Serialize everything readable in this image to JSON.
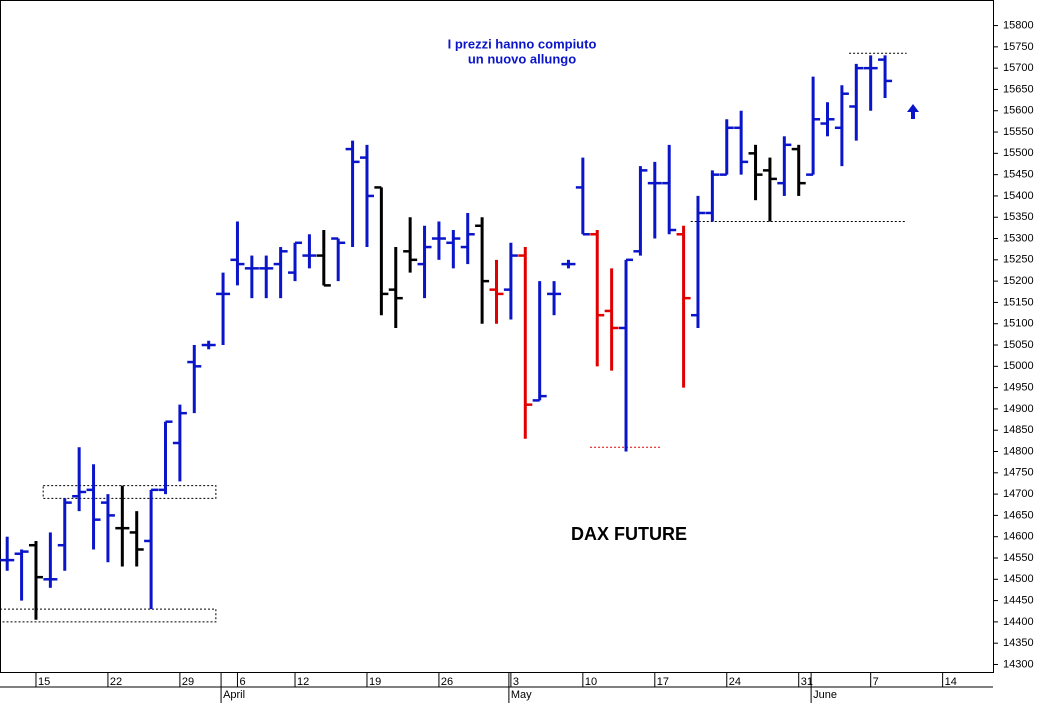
{
  "chart_data": {
    "type": "ohlc",
    "title": "DAX FUTURE",
    "annotations": [
      "I prezzi hanno compiuto",
      "un nuovo allungo"
    ],
    "categories": [
      null,
      null,
      "15",
      null,
      null,
      null,
      null,
      "22",
      null,
      null,
      null,
      null,
      "29",
      null,
      null,
      null,
      "6",
      null,
      null,
      null,
      "12",
      null,
      null,
      null,
      null,
      "19",
      null,
      null,
      null,
      null,
      "26",
      null,
      null,
      null,
      null,
      "3",
      null,
      null,
      null,
      null,
      "10",
      null,
      null,
      null,
      null,
      "17",
      null,
      null,
      null,
      null,
      "24",
      null,
      null,
      null,
      null,
      "31",
      null,
      null,
      null,
      null,
      "7",
      null,
      null,
      null,
      null,
      "14",
      null,
      null,
      null
    ],
    "months": [
      null,
      null,
      null,
      null,
      null,
      null,
      null,
      null,
      null,
      null,
      null,
      null,
      null,
      null,
      null,
      "April",
      null,
      null,
      null,
      null,
      null,
      null,
      null,
      null,
      null,
      null,
      null,
      null,
      null,
      null,
      null,
      null,
      null,
      null,
      null,
      "May",
      null,
      null,
      null,
      null,
      null,
      null,
      null,
      null,
      null,
      null,
      null,
      null,
      null,
      null,
      null,
      null,
      null,
      null,
      null,
      null,
      "June",
      null,
      null,
      null,
      null,
      null,
      null,
      null,
      null,
      null,
      null,
      null,
      null
    ],
    "open": [
      14545,
      14560,
      14580,
      14500,
      14580,
      14695,
      14710,
      14680,
      14620,
      14610,
      14590,
      14710,
      14820,
      15010,
      15050,
      15170,
      15250,
      15230,
      15230,
      15240,
      15220,
      15260,
      15260,
      15300,
      15510,
      15490,
      15420,
      15180,
      15270,
      15240,
      15300,
      15290,
      15280,
      15330,
      15180,
      15180,
      15260,
      14920,
      15170,
      15240,
      15420,
      15310,
      15130,
      15090,
      15270,
      15430,
      15430,
      15310,
      15120,
      15360,
      15450,
      15560,
      15500,
      15460,
      15430,
      15510,
      15450,
      15570,
      15560,
      15610,
      15700,
      15720,
      null,
      null,
      null,
      null,
      null,
      null,
      null
    ],
    "high": [
      14600,
      14570,
      14590,
      14610,
      14690,
      14810,
      14770,
      14700,
      14720,
      14660,
      14710,
      14870,
      14910,
      15050,
      15060,
      15220,
      15340,
      15260,
      15260,
      15280,
      15290,
      15310,
      15320,
      15300,
      15530,
      15520,
      15420,
      15280,
      15350,
      15330,
      15340,
      15320,
      15360,
      15350,
      15250,
      15290,
      15280,
      15200,
      15200,
      15250,
      15490,
      15320,
      15230,
      15250,
      15470,
      15480,
      15520,
      15330,
      15400,
      15460,
      15580,
      15600,
      15520,
      15490,
      15540,
      15520,
      15680,
      15620,
      15660,
      15710,
      15730,
      15730,
      null,
      null,
      null,
      null,
      null,
      null,
      null
    ],
    "low": [
      14520,
      14450,
      14405,
      14480,
      14520,
      14660,
      14570,
      14540,
      14530,
      14530,
      14430,
      14700,
      14730,
      14890,
      15040,
      15050,
      15190,
      15160,
      15160,
      15160,
      15200,
      15230,
      15190,
      15200,
      15280,
      15280,
      15120,
      15090,
      15220,
      15160,
      15250,
      15230,
      15240,
      15100,
      15100,
      15110,
      14830,
      14920,
      15120,
      15230,
      15310,
      15000,
      14990,
      14800,
      15260,
      15300,
      15310,
      14950,
      15090,
      15340,
      15450,
      15450,
      15390,
      15340,
      15400,
      15400,
      15450,
      15540,
      15470,
      15530,
      15600,
      15630,
      null,
      null,
      null,
      null,
      null,
      null,
      null
    ],
    "close": [
      14545,
      14565,
      14505,
      14500,
      14680,
      14705,
      14640,
      14650,
      14620,
      14570,
      14710,
      14870,
      14890,
      15000,
      15050,
      15170,
      15240,
      15230,
      15230,
      15270,
      15290,
      15260,
      15190,
      15290,
      15480,
      15400,
      15170,
      15160,
      15250,
      15280,
      15300,
      15300,
      15310,
      15200,
      15170,
      15260,
      14910,
      14930,
      15170,
      15240,
      15310,
      15120,
      15090,
      15250,
      15460,
      15430,
      15320,
      15160,
      15360,
      15450,
      15560,
      15480,
      15450,
      15440,
      15520,
      15430,
      15580,
      15580,
      15640,
      15700,
      15700,
      15670,
      null,
      null,
      null,
      null,
      null,
      null,
      null
    ],
    "colors": [
      "#0a14c8",
      "#0a14c8",
      "#000000",
      "#0a14c8",
      "#0a14c8",
      "#0a14c8",
      "#0a14c8",
      "#0a14c8",
      "#000000",
      "#000000",
      "#0a14c8",
      "#0a14c8",
      "#0a14c8",
      "#0a14c8",
      "#0a14c8",
      "#0a14c8",
      "#0a14c8",
      "#0a14c8",
      "#0a14c8",
      "#0a14c8",
      "#0a14c8",
      "#0a14c8",
      "#000000",
      "#0a14c8",
      "#0a14c8",
      "#0a14c8",
      "#000000",
      "#000000",
      "#000000",
      "#0a14c8",
      "#0a14c8",
      "#0a14c8",
      "#0a14c8",
      "#000000",
      "#e00000",
      "#0a14c8",
      "#e00000",
      "#0a14c8",
      "#0a14c8",
      "#0a14c8",
      "#0a14c8",
      "#e00000",
      "#e00000",
      "#0a14c8",
      "#0a14c8",
      "#0a14c8",
      "#0a14c8",
      "#e00000",
      "#0a14c8",
      "#0a14c8",
      "#0a14c8",
      "#0a14c8",
      "#000000",
      "#000000",
      "#0a14c8",
      "#000000",
      "#0a14c8",
      "#0a14c8",
      "#0a14c8",
      "#0a14c8",
      "#0a14c8",
      "#0a14c8",
      null,
      null,
      null,
      null,
      null,
      null,
      null
    ],
    "zones": [
      {
        "low": 14400,
        "high": 14430,
        "from": 0,
        "to": 14
      },
      {
        "low": 14690,
        "high": 14720,
        "from": 3,
        "to": 14
      }
    ],
    "levels": [
      {
        "value": 14810,
        "from": 41,
        "to": 45,
        "color": "#e00000"
      },
      {
        "value": 15340,
        "from": 48,
        "to": 62,
        "color": "#000000"
      },
      {
        "value": 15735,
        "from": 59,
        "to": 62,
        "color": "#000000"
      }
    ],
    "ylim": [
      14280,
      15860
    ],
    "yticks": [
      14300,
      14350,
      14400,
      14450,
      14500,
      14550,
      14600,
      14650,
      14700,
      14750,
      14800,
      14850,
      14900,
      14950,
      15000,
      15050,
      15100,
      15150,
      15200,
      15250,
      15300,
      15350,
      15400,
      15450,
      15500,
      15550,
      15600,
      15650,
      15700,
      15750,
      15800
    ]
  }
}
